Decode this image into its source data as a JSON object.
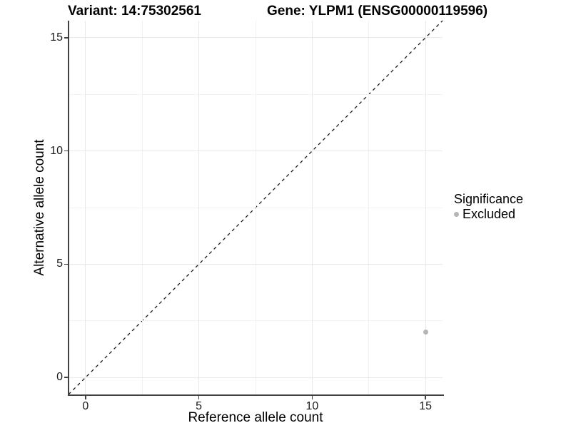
{
  "chart_data": {
    "type": "scatter",
    "title_left": "Variant: 14:75302561",
    "title_right": "Gene: YLPM1 (ENSG00000119596)",
    "xlabel": "Reference allele count",
    "ylabel": "Alternative allele count",
    "xlim": [
      -0.75,
      15.75
    ],
    "ylim": [
      -0.75,
      15.75
    ],
    "x_ticks": [
      0,
      5,
      10,
      15
    ],
    "y_ticks": [
      0,
      5,
      10,
      15
    ],
    "x_minor_ticks": [
      2.5,
      7.5,
      12.5
    ],
    "y_minor_ticks": [
      2.5,
      7.5,
      12.5
    ],
    "grid": "on",
    "legend_position": "right",
    "identity_line": {
      "style": "dashed",
      "color": "#1a1a1a",
      "x1": -0.75,
      "y1": -0.75,
      "x2": 15.75,
      "y2": 15.75
    },
    "legend": {
      "title": "Significance",
      "entries": [
        {
          "label": "Excluded",
          "color": "#b5b5b5"
        }
      ]
    },
    "series": [
      {
        "name": "Excluded",
        "color": "#b5b5b5",
        "points": [
          {
            "x": 15,
            "y": 2
          }
        ]
      }
    ],
    "colors": {
      "axis": "#404040",
      "grid_major": "#e9e9e9",
      "grid_minor": "#f2f2f2",
      "background": "#ffffff"
    }
  }
}
